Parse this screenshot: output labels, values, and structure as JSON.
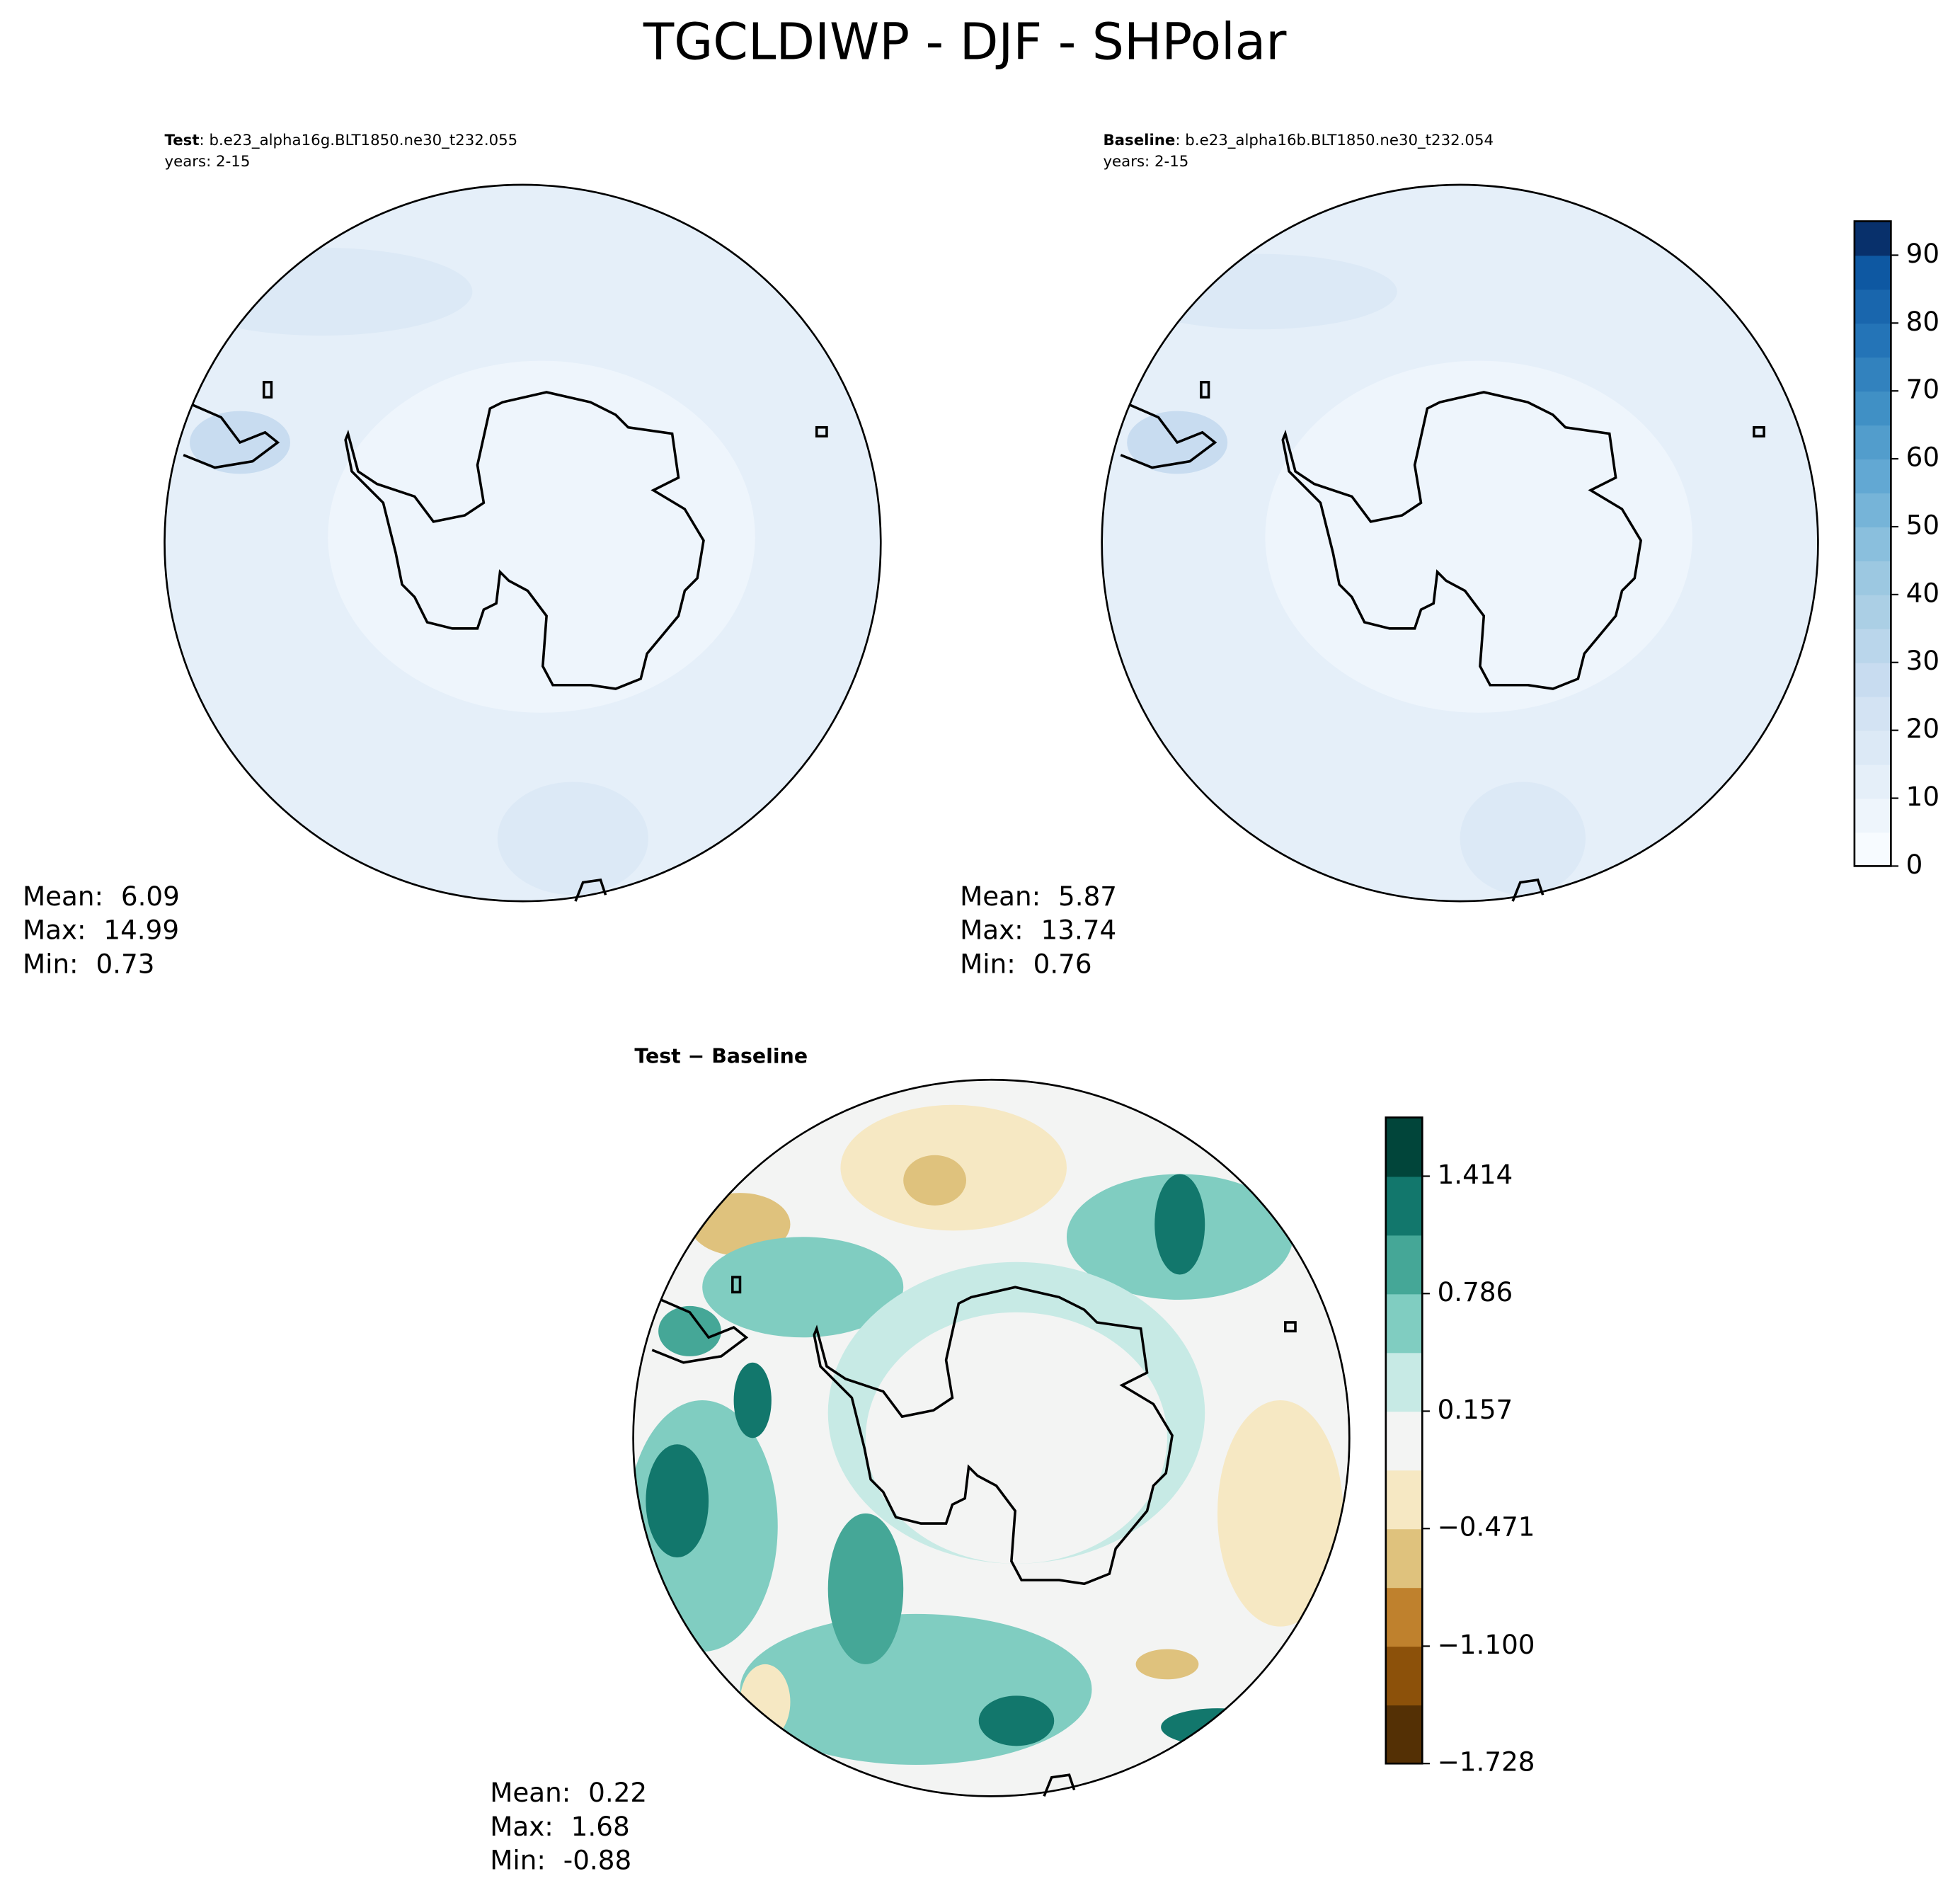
{
  "title": "TGCLDIWP - DJF - SHPolar",
  "panels": [
    {
      "label": "Test",
      "case": ": b.e23_alpha16g.BLT1850.ne30_t232.055",
      "years": "years: 2-15",
      "stats": [
        {
          "label": "Mean:",
          "value": 6.09
        },
        {
          "label": "Max:",
          "value": 14.99
        },
        {
          "label": "Min:",
          "value": 0.73
        }
      ]
    },
    {
      "label": "Baseline",
      "case": ": b.e23_alpha16b.BLT1850.ne30_t232.054",
      "years": "years: 2-15",
      "stats": [
        {
          "label": "Mean:",
          "value": 5.87
        },
        {
          "label": "Max:",
          "value": 13.74
        },
        {
          "label": "Min:",
          "value": 0.76
        }
      ]
    },
    {
      "label": "Test − Baseline",
      "stats": [
        {
          "label": "Mean:",
          "value": 0.22
        },
        {
          "label": "Max:",
          "value": 1.68
        },
        {
          "label": "Min:",
          "value": -0.88
        }
      ]
    }
  ],
  "colorbars": [
    {
      "ylim": [
        0,
        95
      ],
      "yticks": [
        0,
        10,
        20,
        30,
        40,
        50,
        60,
        70,
        80,
        90
      ],
      "colors": [
        "#f7fbff",
        "#eef5fc",
        "#e5eff9",
        "#dce9f6",
        "#d3e3f3",
        "#c8dcf0",
        "#bad6eb",
        "#abcfe5",
        "#9cc8e1",
        "#8abfdd",
        "#76b4d8",
        "#62a8d3",
        "#529dcc",
        "#4090c5",
        "#3282be",
        "#2474b7",
        "#1966ad",
        "#0e58a2",
        "#08306b"
      ]
    },
    {
      "ylim": [
        -1.728,
        1.728
      ],
      "yticks": [
        {
          "value": -1.728,
          "label": "−1.728"
        },
        {
          "value": -1.1,
          "label": "−1.100"
        },
        {
          "value": -0.471,
          "label": "−0.471"
        },
        0.157,
        0.786,
        1.414
      ],
      "colors": [
        "#543005",
        "#8c510a",
        "#bf812d",
        "#dfc27d",
        "#f6e8c3",
        "#f3f4f3",
        "#c7eae5",
        "#80cdc1",
        "#45a797",
        "#12776c",
        "#01453a"
      ]
    }
  ]
}
